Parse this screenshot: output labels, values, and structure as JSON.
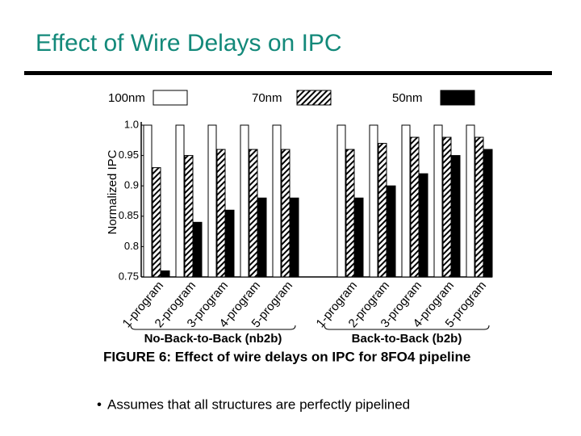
{
  "chart_data": {
    "type": "bar",
    "title": "Effect of Wire Delays on IPC",
    "caption": "FIGURE 6: Effect of wire delays on IPC for 8FO4 pipeline",
    "bullet": "Assumes that all structures are perfectly pipelined",
    "y_label": "Normalized IPC",
    "categories": [
      "1-program",
      "2-program",
      "3-program",
      "4-program",
      "5-program",
      "1-program",
      "2-program",
      "3-program",
      "4-program",
      "5-program"
    ],
    "groups": [
      "No-Back-to-Back (nb2b)",
      "Back-to-Back (b2b)"
    ],
    "series": [
      {
        "name": "100nm",
        "color": "#ffffff",
        "values": [
          1,
          1,
          1,
          1,
          1,
          1,
          1,
          1,
          1,
          1
        ]
      },
      {
        "name": "70nm",
        "color": "#000000",
        "pattern": "hatch",
        "values": [
          0.93,
          0.95,
          0.96,
          0.96,
          0.96,
          0.96,
          0.97,
          0.98,
          0.98,
          0.98
        ]
      },
      {
        "name": "50nm",
        "color": "#000000",
        "values": [
          0.76,
          0.84,
          0.86,
          0.88,
          0.88,
          0.88,
          0.9,
          0.92,
          0.95,
          0.96
        ]
      }
    ],
    "ylim": [
      0.75,
      1
    ],
    "yticks": [
      0.75,
      0.8,
      0.85,
      0.9,
      0.95,
      {
        "value": 1,
        "label": "1.0"
      }
    ]
  }
}
